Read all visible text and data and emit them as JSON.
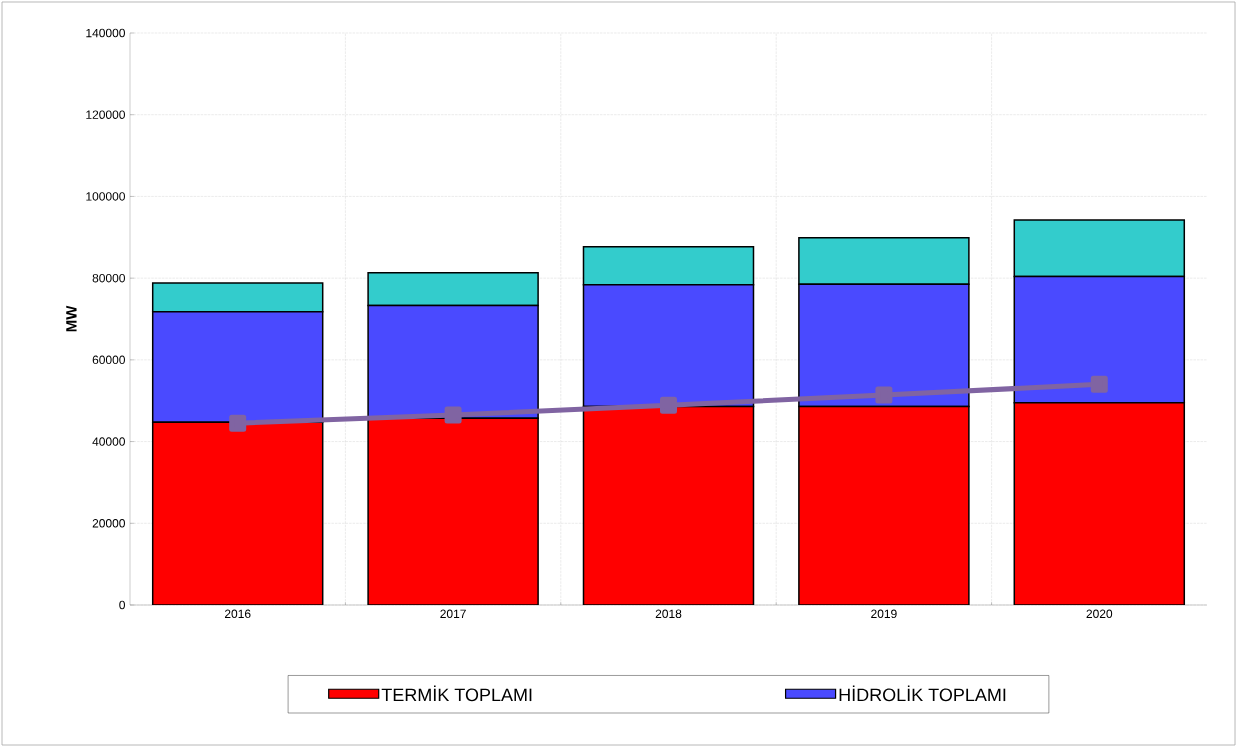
{
  "chart_data": {
    "type": "bar",
    "stacked": true,
    "ylabel": "MW",
    "categories": [
      "2016",
      "2017",
      "2018",
      "2019",
      "2020"
    ],
    "series": [
      {
        "name": "TERMİK TOPLAMI",
        "color": "#ff0000",
        "values": [
          44700,
          45700,
          48600,
          48600,
          49500
        ]
      },
      {
        "name": "HİDROLİK TOPLAMI",
        "color": "#4a4aff",
        "values": [
          27100,
          27600,
          29800,
          29900,
          30900
        ]
      },
      {
        "color": "#33cccc",
        "values": [
          7000,
          8000,
          9300,
          11400,
          13800
        ]
      },
      {
        "type": "line",
        "color": "#8064a2",
        "marker": "square",
        "values": [
          44500,
          46500,
          48900,
          51400,
          54000
        ]
      }
    ],
    "ylim": [
      0,
      140000
    ],
    "yticks": [
      0,
      20000,
      40000,
      60000,
      80000,
      100000,
      120000,
      140000
    ],
    "grid": true,
    "legend": "bottom"
  }
}
